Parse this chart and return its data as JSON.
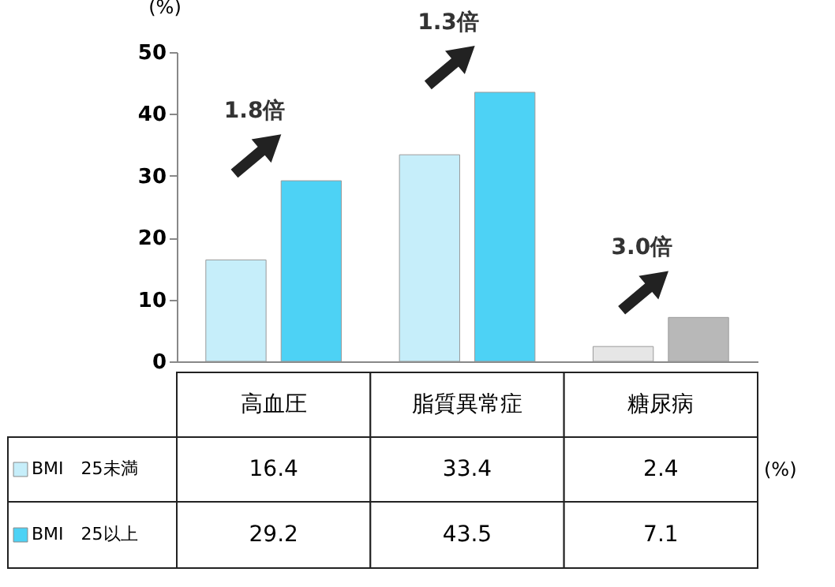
{
  "chart_data": {
    "type": "bar",
    "ylabel": "(%)",
    "categories": [
      "高血圧",
      "脂質異常症",
      "糖尿病"
    ],
    "series": [
      {
        "name": "BMI　25未満",
        "colors": [
          "#c6eefa",
          "#c6eefa",
          "#e6e6e6"
        ],
        "values": [
          16.4,
          33.4,
          2.4
        ]
      },
      {
        "name": "BMI　25以上",
        "colors": [
          "#4dd2f5",
          "#4dd2f5",
          "#b8b8b8"
        ],
        "values": [
          29.2,
          43.5,
          7.1
        ]
      }
    ],
    "ylim": [
      0,
      50
    ],
    "yticks": [
      0,
      10,
      20,
      30,
      40,
      50
    ],
    "grid": false,
    "legend": "left",
    "tick_labels": "y",
    "data_labels": true,
    "annotations": [
      "1.8倍",
      "1.3倍",
      "3.0倍",
      "(%)"
    ]
  }
}
